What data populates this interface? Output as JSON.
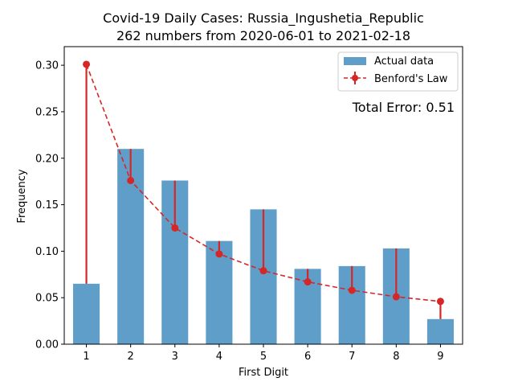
{
  "chart_data": {
    "type": "bar",
    "title_line1": "Covid-19 Daily Cases: Russia_Ingushetia_Republic",
    "title_line2": "262 numbers from 2020-06-01 to 2021-02-18",
    "xlabel": "First Digit",
    "ylabel": "Frequency",
    "categories": [
      "1",
      "2",
      "3",
      "4",
      "5",
      "6",
      "7",
      "8",
      "9"
    ],
    "ylim": [
      0,
      0.32
    ],
    "yticks": [
      "0.00",
      "0.05",
      "0.10",
      "0.15",
      "0.20",
      "0.25",
      "0.30"
    ],
    "series": [
      {
        "name": "Actual data",
        "kind": "bar",
        "color": "#5f9ec8",
        "values": [
          0.065,
          0.21,
          0.176,
          0.111,
          0.145,
          0.081,
          0.084,
          0.103,
          0.027
        ]
      },
      {
        "name": "Benford's Law",
        "kind": "line",
        "color": "#d62728",
        "values": [
          0.301,
          0.176,
          0.125,
          0.097,
          0.079,
          0.067,
          0.058,
          0.051,
          0.046
        ]
      }
    ],
    "annotation": "Total Error: 0.51",
    "annotation_color": "#d62728",
    "legend_position": "top-right",
    "grid": false
  }
}
